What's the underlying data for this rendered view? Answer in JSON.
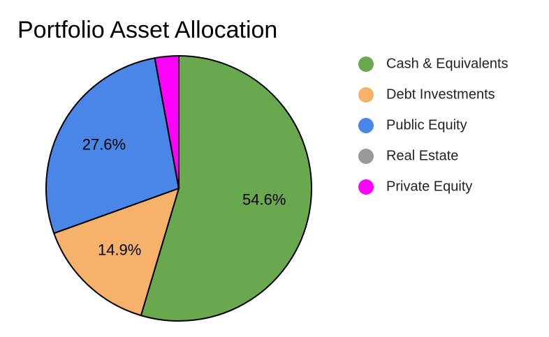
{
  "chart_data": {
    "type": "pie",
    "title": "Portfolio Asset Allocation",
    "categories": [
      "Cash & Equivalents",
      "Debt Investments",
      "Public Equity",
      "Real Estate",
      "Private Equity"
    ],
    "values": [
      54.6,
      14.9,
      27.6,
      0,
      2.9
    ],
    "value_labels": [
      "54.6%",
      "14.9%",
      "27.6%",
      null,
      null
    ],
    "colors": [
      "#6aa84f",
      "#f6b26b",
      "#4a86e8",
      "#999999",
      "#ff00ff"
    ],
    "legend": "right"
  }
}
